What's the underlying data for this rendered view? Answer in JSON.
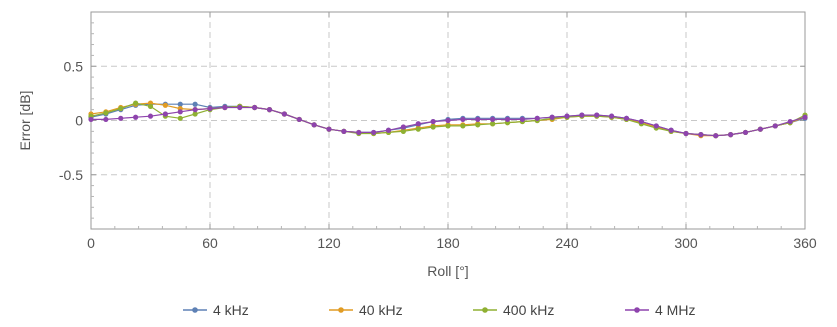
{
  "chart_data": {
    "type": "line",
    "title": "",
    "xlabel": "Roll [°]",
    "ylabel": "Error [dB]",
    "xlim": [
      0,
      360
    ],
    "ylim": [
      -1,
      1
    ],
    "x_ticks": [
      0,
      60,
      120,
      180,
      240,
      300,
      360
    ],
    "x_tick_labels": [
      "0",
      "60",
      "120",
      "180",
      "240",
      "300",
      "360"
    ],
    "y_ticks": [
      0.5,
      0,
      -0.5
    ],
    "y_tick_labels": [
      "0.5",
      "0",
      "-0.5"
    ],
    "grid": true,
    "legend_position": "bottom",
    "x": [
      0,
      7.5,
      15,
      22.5,
      30,
      37.5,
      45,
      52.5,
      60,
      67.5,
      75,
      82.5,
      90,
      97.5,
      105,
      112.5,
      120,
      127.5,
      135,
      142.5,
      150,
      157.5,
      165,
      172.5,
      180,
      187.5,
      195,
      202.5,
      210,
      217.5,
      225,
      232.5,
      240,
      247.5,
      255,
      262.5,
      270,
      277.5,
      285,
      292.5,
      300,
      307.5,
      315,
      322.5,
      330,
      337.5,
      345,
      352.5,
      360
    ],
    "series": [
      {
        "name": "4 kHz",
        "color": "#5e81b5",
        "values": [
          0.03,
          0.06,
          0.1,
          0.14,
          0.15,
          0.15,
          0.15,
          0.15,
          0.12,
          0.13,
          0.13,
          0.12,
          0.1,
          0.06,
          0.01,
          -0.04,
          -0.08,
          -0.1,
          -0.11,
          -0.11,
          -0.09,
          -0.07,
          -0.04,
          -0.01,
          0.01,
          0.02,
          0.02,
          0.02,
          0.02,
          0.02,
          0.02,
          0.03,
          0.04,
          0.05,
          0.05,
          0.04,
          0.02,
          -0.01,
          -0.05,
          -0.09,
          -0.12,
          -0.13,
          -0.14,
          -0.13,
          -0.11,
          -0.08,
          -0.05,
          -0.02,
          0.02
        ]
      },
      {
        "name": "40 kHz",
        "color": "#e19c24",
        "values": [
          0.06,
          0.08,
          0.12,
          0.15,
          0.16,
          0.14,
          0.11,
          0.1,
          0.11,
          0.12,
          0.13,
          0.12,
          0.1,
          0.06,
          0.01,
          -0.04,
          -0.08,
          -0.1,
          -0.11,
          -0.12,
          -0.11,
          -0.09,
          -0.07,
          -0.05,
          -0.04,
          -0.04,
          -0.03,
          -0.03,
          -0.02,
          -0.01,
          0.0,
          0.01,
          0.03,
          0.04,
          0.04,
          0.03,
          0.01,
          -0.02,
          -0.06,
          -0.1,
          -0.12,
          -0.14,
          -0.14,
          -0.13,
          -0.11,
          -0.08,
          -0.05,
          -0.02,
          0.03
        ]
      },
      {
        "name": "400 kHz",
        "color": "#8fb032",
        "values": [
          0.04,
          0.07,
          0.11,
          0.16,
          0.13,
          0.04,
          0.02,
          0.06,
          0.1,
          0.12,
          0.13,
          0.12,
          0.1,
          0.06,
          0.01,
          -0.04,
          -0.08,
          -0.1,
          -0.12,
          -0.12,
          -0.11,
          -0.1,
          -0.08,
          -0.06,
          -0.05,
          -0.05,
          -0.04,
          -0.03,
          -0.02,
          -0.01,
          0.0,
          0.02,
          0.03,
          0.04,
          0.04,
          0.03,
          0.01,
          -0.03,
          -0.07,
          -0.1,
          -0.12,
          -0.13,
          -0.14,
          -0.13,
          -0.11,
          -0.08,
          -0.05,
          -0.02,
          0.05
        ]
      },
      {
        "name": "4 MHz",
        "color": "#8e44ad",
        "values": [
          0.01,
          0.01,
          0.02,
          0.03,
          0.04,
          0.06,
          0.08,
          0.1,
          0.11,
          0.12,
          0.12,
          0.12,
          0.1,
          0.06,
          0.01,
          -0.04,
          -0.08,
          -0.1,
          -0.11,
          -0.11,
          -0.09,
          -0.06,
          -0.03,
          -0.01,
          0.0,
          0.01,
          0.01,
          0.01,
          0.01,
          0.01,
          0.02,
          0.03,
          0.04,
          0.05,
          0.05,
          0.04,
          0.02,
          -0.01,
          -0.05,
          -0.09,
          -0.12,
          -0.13,
          -0.14,
          -0.13,
          -0.11,
          -0.08,
          -0.05,
          -0.01,
          0.03
        ]
      }
    ]
  }
}
